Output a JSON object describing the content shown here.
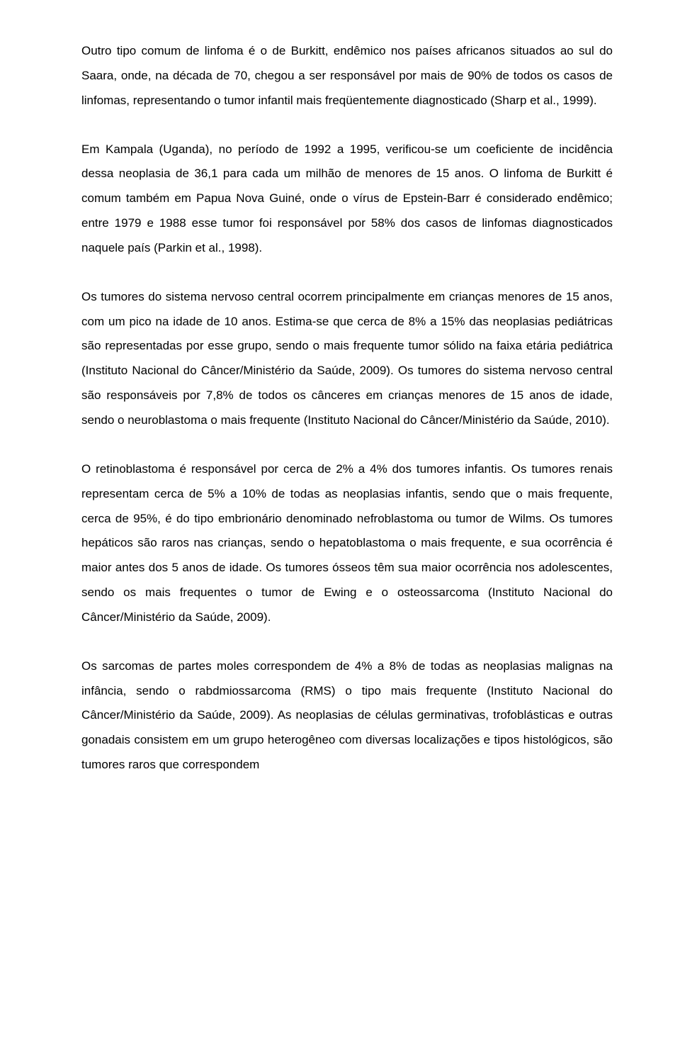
{
  "paragraphs": [
    "Outro tipo comum de linfoma é o de Burkitt, endêmico nos países africanos situados ao sul do Saara, onde, na década de 70, chegou a ser responsável por mais de 90% de todos os casos de linfomas, representando o tumor infantil mais freqüentemente diagnosticado (Sharp et al., 1999).",
    "Em Kampala (Uganda), no período de 1992 a 1995, verificou-se um coeficiente de incidência dessa neoplasia de 36,1 para cada um milhão de menores de 15 anos. O linfoma de Burkitt é comum também em Papua Nova Guiné, onde o vírus de Epstein-Barr é considerado endêmico; entre 1979 e 1988 esse tumor foi responsável por 58% dos casos de linfomas diagnosticados naquele país (Parkin et al., 1998).",
    "Os tumores do sistema nervoso central ocorrem principalmente em crianças menores de 15 anos, com um pico na idade de 10 anos. Estima-se que cerca de 8% a 15% das neoplasias pediátricas são representadas por esse grupo, sendo o mais frequente tumor sólido na faixa etária pediátrica (Instituto Nacional do Câncer/Ministério da Saúde, 2009). Os tumores do sistema nervoso central são responsáveis por 7,8% de todos os cânceres em crianças menores de 15 anos de idade, sendo o neuroblastoma o mais frequente (Instituto Nacional do Câncer/Ministério da Saúde, 2010).",
    "O retinoblastoma é responsável por cerca de 2% a 4% dos tumores infantis. Os tumores renais representam cerca de 5% a 10% de todas as neoplasias infantis, sendo que o mais frequente, cerca de 95%, é do tipo embrionário denominado nefroblastoma ou tumor de Wilms. Os tumores hepáticos são raros nas crianças, sendo o hepatoblastoma o mais frequente, e sua ocorrência é maior antes dos 5 anos de idade. Os tumores ósseos têm sua maior ocorrência nos adolescentes, sendo os mais frequentes o tumor de Ewing e o osteossarcoma (Instituto Nacional do Câncer/Ministério da Saúde, 2009).",
    "Os sarcomas de partes moles correspondem de 4% a 8% de todas as neoplasias malignas na infância, sendo o rabdmiossarcoma (RMS) o tipo mais frequente (Instituto Nacional do Câncer/Ministério da Saúde, 2009). As neoplasias de células germinativas, trofoblásticas e outras gonadais consistem em um grupo heterogêneo com diversas localizações e tipos histológicos, são tumores raros que correspondem"
  ]
}
